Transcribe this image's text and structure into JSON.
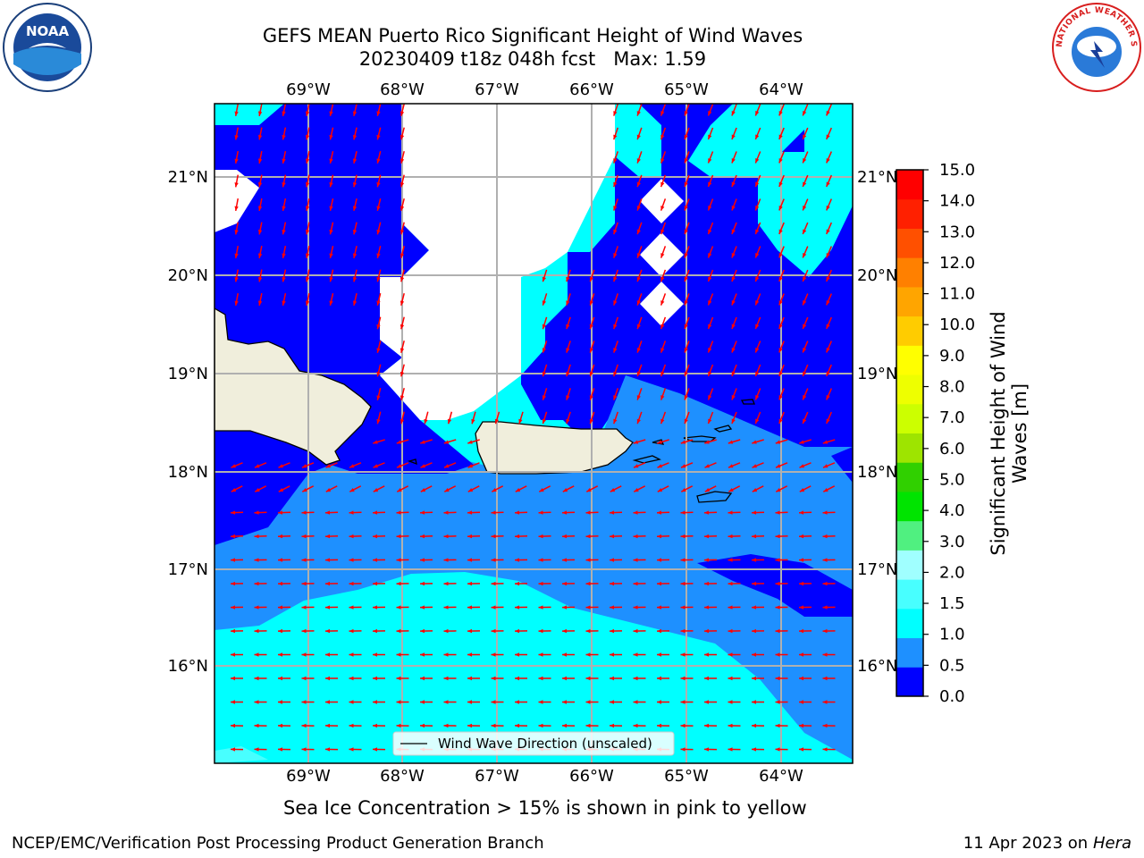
{
  "header": {
    "title_line1": "GEFS MEAN Puerto Rico Significant Height of Wind Waves",
    "title_line2": "20230409 t18z 048h fcst   Max: 1.59"
  },
  "logos": {
    "noaa_text": "NOAA",
    "nws_text": "NATIONAL WEATHER SERVICE"
  },
  "map": {
    "lon_labels": [
      "69°W",
      "68°W",
      "67°W",
      "66°W",
      "65°W",
      "64°W"
    ],
    "lat_labels": [
      "21°N",
      "20°N",
      "19°N",
      "18°N",
      "17°N",
      "16°N"
    ],
    "legend_label": "Wind Wave Direction (unscaled)",
    "wave_direction_icon": "arrow-icon",
    "colors": {
      "land": "#f0eedc",
      "arrow": "#ff0000",
      "grid": "#b0b0b0"
    }
  },
  "colorbar": {
    "label": "Significant Height of Wind Waves [m]",
    "ticks": [
      "0.0",
      "0.5",
      "1.0",
      "1.5",
      "2.0",
      "3.0",
      "4.0",
      "5.0",
      "6.0",
      "7.0",
      "8.0",
      "9.0",
      "10.0",
      "11.0",
      "12.0",
      "13.0",
      "14.0",
      "15.0"
    ],
    "colors": [
      "#0000ff",
      "#1e90ff",
      "#00ffff",
      "#48ffff",
      "#a0ffff",
      "#50f080",
      "#00e400",
      "#30d000",
      "#9ee400",
      "#ccff00",
      "#eeff00",
      "#ffff00",
      "#ffcc00",
      "#ffa500",
      "#ff8000",
      "#ff5000",
      "#ff2000",
      "#ff0000"
    ]
  },
  "caption": "Sea Ice Concentration > 15% is shown in pink to yellow",
  "footer": {
    "left": "NCEP/EMC/Verification Post Processing Product Generation Branch",
    "right_prefix": "11 Apr 2023 on ",
    "right_italic": "Hera"
  }
}
